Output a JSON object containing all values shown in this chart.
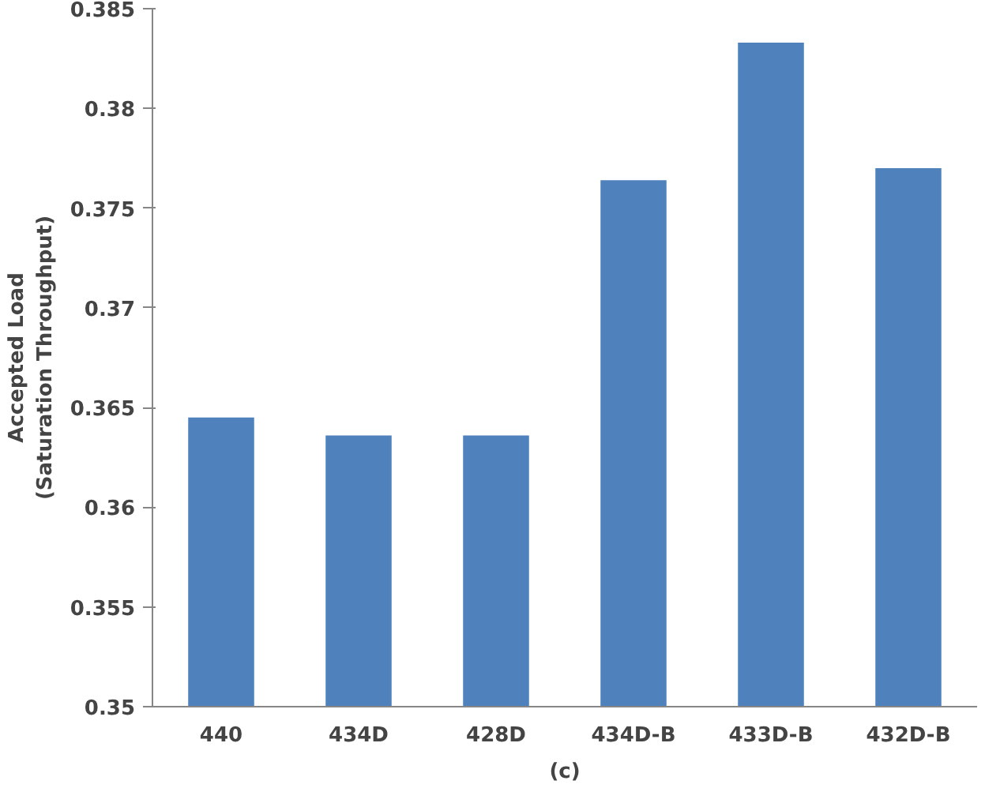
{
  "chart_data": {
    "type": "bar",
    "xlabel": "(c)",
    "ylabel": "Accepted Load\n(Saturation Throughput)",
    "categories": [
      "440",
      "434D",
      "428D",
      "434D-B",
      "433D-B",
      "432D-B"
    ],
    "values": [
      0.3645,
      0.3636,
      0.3636,
      0.3764,
      0.3833,
      0.377
    ],
    "color": "#4f81bd",
    "ylim": [
      0.35,
      0.385
    ],
    "yticks": [
      0.35,
      0.355,
      0.36,
      0.365,
      0.37,
      0.375,
      0.38,
      0.385
    ],
    "grid": false
  }
}
